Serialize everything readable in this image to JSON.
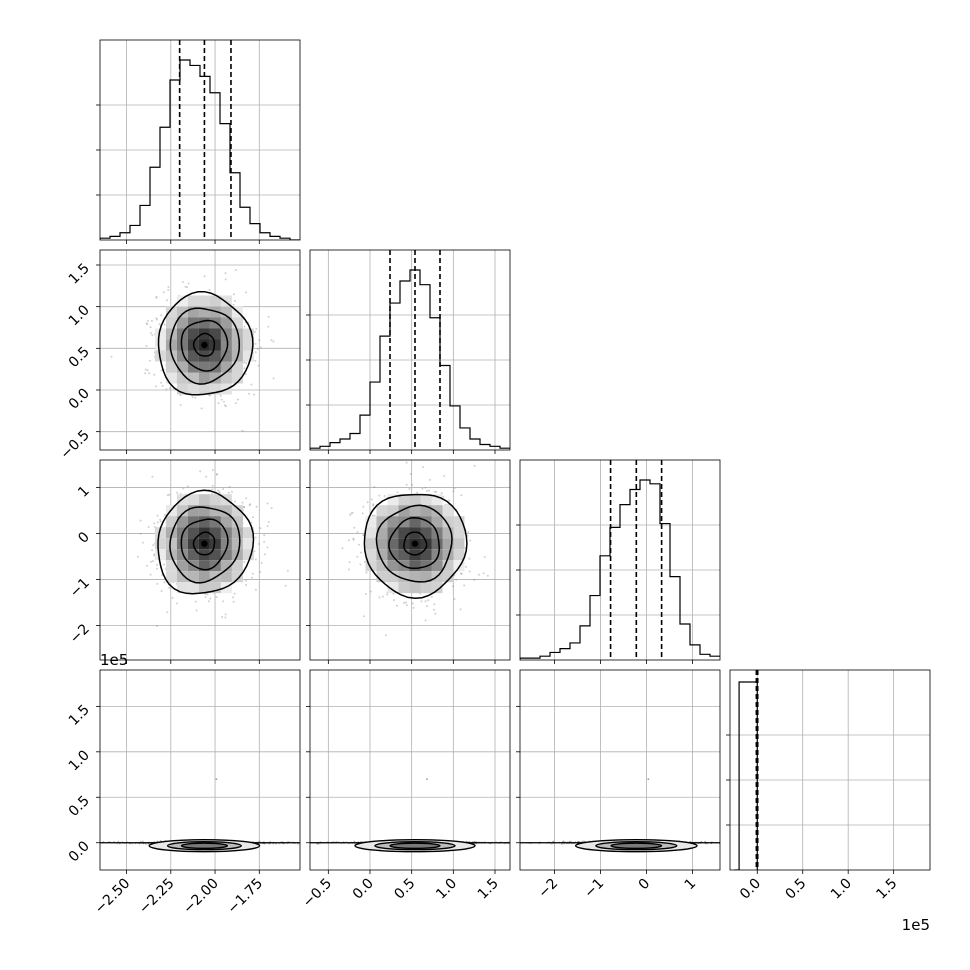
{
  "chart_data": {
    "type": "corner",
    "title": "",
    "labels": [
      "",
      "",
      "",
      ""
    ],
    "grid": true,
    "quantile_lines": [
      0.16,
      0.5,
      0.84
    ],
    "parameters": [
      {
        "range": [
          -2.65,
          -1.52
        ],
        "ticks": [
          -2.5,
          -2.25,
          -2.0,
          -1.75
        ],
        "tick_labels": [
          "−2.50",
          "−2.25",
          "−2.00",
          "−1.75"
        ],
        "quantiles": [
          -2.2,
          -2.06,
          -1.91
        ],
        "center": -2.06,
        "sigma": 0.13,
        "hist": {
          "edges_start": -2.65,
          "bin_width": 0.0565,
          "counts": [
            1,
            2,
            4,
            8,
            19,
            40,
            62,
            88,
            99,
            96,
            90,
            81,
            64,
            37,
            18,
            9,
            4,
            2,
            1,
            0
          ]
        }
      },
      {
        "range": [
          -0.72,
          1.68
        ],
        "ticks": [
          -0.5,
          0.0,
          0.5,
          1.0,
          1.5
        ],
        "tick_labels": [
          "−0.5",
          "0.0",
          "0.5",
          "1.0",
          "1.5"
        ],
        "quantiles": [
          0.24,
          0.54,
          0.84
        ],
        "center": 0.54,
        "sigma": 0.3,
        "hist": {
          "edges_start": -0.72,
          "bin_width": 0.12,
          "counts": [
            1,
            2,
            4,
            6,
            9,
            19,
            37,
            62,
            80,
            92,
            98,
            90,
            72,
            46,
            24,
            12,
            6,
            3,
            2,
            1
          ]
        }
      },
      {
        "range": [
          -2.75,
          1.6
        ],
        "ticks": [
          -2,
          -1,
          0,
          1
        ],
        "tick_labels": [
          "−2",
          "−1",
          "0",
          "1"
        ],
        "quantiles": [
          -0.78,
          -0.22,
          0.33
        ],
        "center": -0.22,
        "sigma": 0.55,
        "hist": {
          "edges_start": -2.75,
          "bin_width": 0.2175,
          "counts": [
            1,
            1,
            2,
            4,
            6,
            9,
            18,
            34,
            55,
            70,
            82,
            90,
            95,
            93,
            72,
            44,
            19,
            8,
            3,
            2
          ]
        }
      },
      {
        "range": [
          -0.3,
          1.9
        ],
        "ticks": [
          0.0,
          0.5,
          1.0,
          1.5
        ],
        "tick_labels": [
          "0.0",
          "0.5",
          "1.0",
          "1.5"
        ],
        "offset_text": "1e5",
        "quantiles": [
          -0.01,
          -0.001,
          0.005
        ],
        "hist": {
          "edges": [
            -0.25,
            -0.2,
            0.0
          ],
          "counts": [
            0,
            100
          ]
        }
      }
    ],
    "contour_levels": [
      "0.5σ",
      "1σ",
      "1.5σ",
      "2σ"
    ],
    "scatter_points": 3000,
    "offset_text_row4": "1e5"
  }
}
